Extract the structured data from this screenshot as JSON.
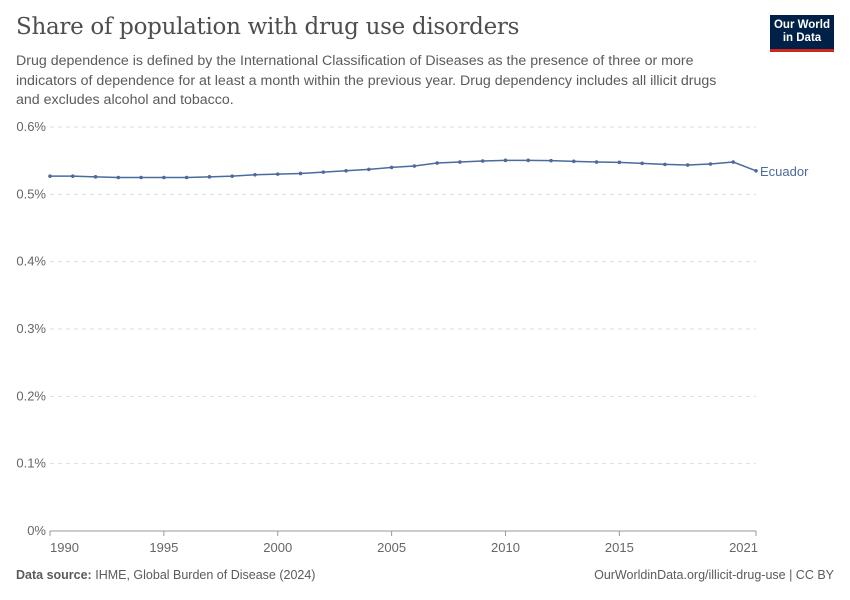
{
  "header": {
    "title": "Share of population with drug use disorders",
    "subtitle": "Drug dependence is defined by the International Classification of Diseases as the presence of three or more indicators of dependence for at least a month within the previous year. Drug dependency includes all illicit drugs and excludes alcohol and tobacco.",
    "logo": "Our World in Data"
  },
  "footer": {
    "source_label": "Data source:",
    "source": "IHME, Global Burden of Disease (2024)",
    "link": "OurWorldinData.org/illicit-drug-use | CC BY"
  },
  "chart_data": {
    "type": "line",
    "title": "Share of population with drug use disorders",
    "xlabel": "",
    "ylabel": "",
    "ylim": [
      0,
      0.6
    ],
    "yticks": [
      "0%",
      "0.1%",
      "0.2%",
      "0.3%",
      "0.4%",
      "0.5%",
      "0.6%"
    ],
    "xticks": [
      "1990",
      "1995",
      "2000",
      "2005",
      "2010",
      "2015",
      "2021"
    ],
    "grid": "horizontal dashed",
    "legend": "inline-right",
    "series": [
      {
        "name": "Ecuador",
        "color": "#4c6a9c",
        "x": [
          1990,
          1991,
          1992,
          1993,
          1994,
          1995,
          1996,
          1997,
          1998,
          1999,
          2000,
          2001,
          2002,
          2003,
          2004,
          2005,
          2006,
          2007,
          2008,
          2009,
          2010,
          2011,
          2012,
          2013,
          2014,
          2015,
          2016,
          2017,
          2018,
          2019,
          2020,
          2021
        ],
        "values": [
          0.527,
          0.527,
          0.526,
          0.525,
          0.525,
          0.525,
          0.525,
          0.526,
          0.527,
          0.529,
          0.53,
          0.531,
          0.533,
          0.535,
          0.537,
          0.54,
          0.542,
          0.5465,
          0.548,
          0.5495,
          0.5505,
          0.5505,
          0.55,
          0.549,
          0.548,
          0.5475,
          0.546,
          0.5445,
          0.5435,
          0.545,
          0.548,
          0.535
        ]
      }
    ]
  }
}
